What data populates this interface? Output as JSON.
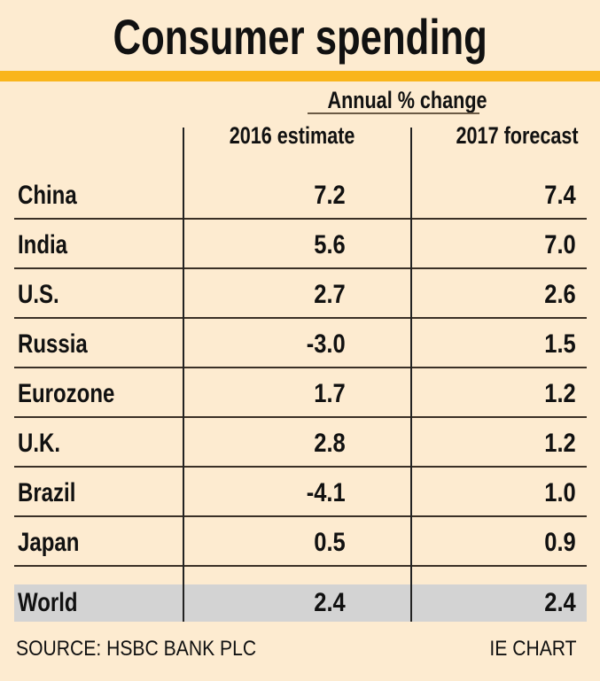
{
  "chart_data": {
    "type": "table",
    "title": "Consumer spending",
    "subtitle": "Annual % change",
    "columns": [
      "",
      "2016 estimate",
      "2017 forecast"
    ],
    "rows": [
      {
        "country": "China",
        "estimate_2016": "7.2",
        "forecast_2017": "7.4"
      },
      {
        "country": "India",
        "estimate_2016": "5.6",
        "forecast_2017": "7.0"
      },
      {
        "country": "U.S.",
        "estimate_2016": "2.7",
        "forecast_2017": "2.6"
      },
      {
        "country": "Russia",
        "estimate_2016": "-3.0",
        "forecast_2017": "1.5"
      },
      {
        "country": "Eurozone",
        "estimate_2016": "1.7",
        "forecast_2017": "1.2"
      },
      {
        "country": "U.K.",
        "estimate_2016": "2.8",
        "forecast_2017": "1.2"
      },
      {
        "country": "Brazil",
        "estimate_2016": "-4.1",
        "forecast_2017": "1.0"
      },
      {
        "country": "Japan",
        "estimate_2016": "0.5",
        "forecast_2017": "0.9"
      }
    ],
    "total_row": {
      "country": "World",
      "estimate_2016": "2.4",
      "forecast_2017": "2.4"
    },
    "source": "SOURCE: HSBC BANK PLC",
    "credit": "IE CHART"
  },
  "colors": {
    "background": "#fdebd0",
    "accent_band": "#f9b51b",
    "highlight_row": "#d3d3d3",
    "text": "#111111"
  }
}
